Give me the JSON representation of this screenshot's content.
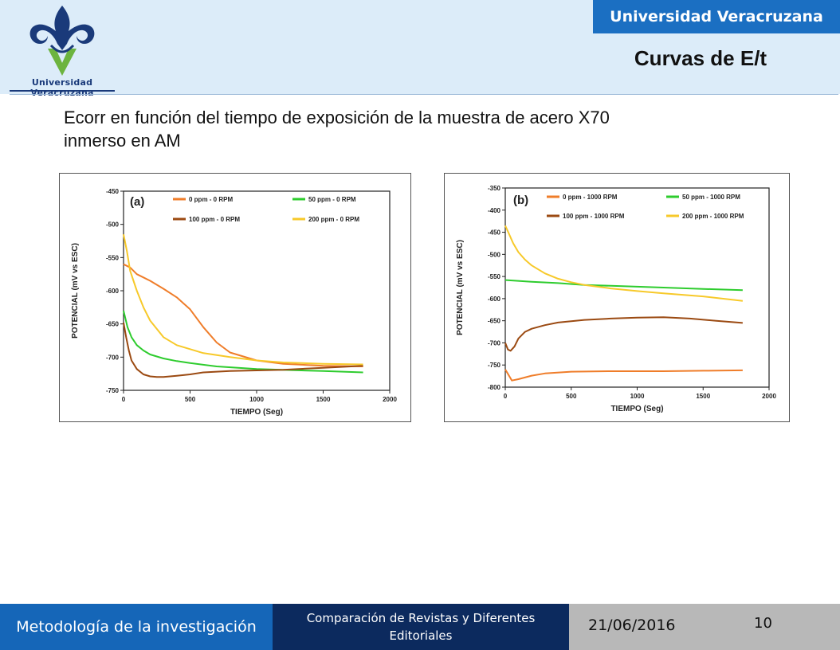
{
  "header": {
    "brand": "Universidad Veracruzana",
    "logo_text": "Universidad Veracruzana",
    "title": "Curvas de E/t"
  },
  "subtitle_line1": "Ecorr en función del tiempo de exposición de la muestra de acero X70",
  "subtitle_line2": "inmerso en AM",
  "footer": {
    "left": "Metodología de la investigación",
    "middle": "Comparación de Revistas y Diferentes Editoriales",
    "date": "21/06/2016",
    "page": "10"
  },
  "colors": {
    "header_band": "#dcecf9",
    "brand_blue": "#1b6fc2",
    "footer_dark": "#0c2a5e",
    "footer_gray": "#b8b8b8"
  },
  "chart_data": [
    {
      "type": "line",
      "panel_label": "(a)",
      "xlabel": "TIEMPO (Seg)",
      "ylabel": "POTENCIAL (mV vs ESC)",
      "xlim": [
        0,
        2000
      ],
      "ylim": [
        -750,
        -450
      ],
      "xticks": [
        0,
        500,
        1000,
        1500,
        2000
      ],
      "yticks": [
        -750,
        -700,
        -650,
        -600,
        -550,
        -500,
        -450
      ],
      "grid": false,
      "legend": "top, two columns",
      "series": [
        {
          "name": "0 ppm - 0 RPM",
          "color": "#ef7d2a",
          "x": [
            0,
            50,
            100,
            150,
            200,
            300,
            400,
            500,
            600,
            700,
            800,
            1000,
            1200,
            1500,
            1800
          ],
          "y": [
            -560,
            -565,
            -575,
            -580,
            -585,
            -597,
            -610,
            -628,
            -655,
            -678,
            -693,
            -705,
            -710,
            -713,
            -714
          ]
        },
        {
          "name": "50 ppm - 0 RPM",
          "color": "#2ecc2e",
          "x": [
            0,
            30,
            60,
            100,
            150,
            200,
            300,
            400,
            500,
            700,
            1000,
            1500,
            1800
          ],
          "y": [
            -630,
            -655,
            -670,
            -682,
            -690,
            -696,
            -702,
            -706,
            -709,
            -714,
            -718,
            -721,
            -723
          ]
        },
        {
          "name": "100 ppm - 0 RPM",
          "color": "#9b4a12",
          "x": [
            0,
            20,
            40,
            60,
            100,
            150,
            200,
            250,
            300,
            400,
            500,
            600,
            800,
            1000,
            1200,
            1500,
            1800
          ],
          "y": [
            -648,
            -670,
            -690,
            -705,
            -718,
            -726,
            -729,
            -730,
            -730,
            -728,
            -726,
            -723,
            -721,
            -720,
            -719,
            -716,
            -713
          ]
        },
        {
          "name": "200 ppm - 0 RPM",
          "color": "#f7c92a",
          "x": [
            0,
            25,
            50,
            100,
            150,
            200,
            300,
            400,
            500,
            600,
            800,
            1000,
            1200,
            1500,
            1800
          ],
          "y": [
            -515,
            -540,
            -570,
            -600,
            -625,
            -645,
            -670,
            -682,
            -688,
            -694,
            -700,
            -705,
            -708,
            -710,
            -711
          ]
        }
      ]
    },
    {
      "type": "line",
      "panel_label": "(b)",
      "xlabel": "TIEMPO (Seg)",
      "ylabel": "POTENCIAL (mV vs ESC)",
      "xlim": [
        0,
        2000
      ],
      "ylim": [
        -800,
        -350
      ],
      "xticks": [
        0,
        500,
        1000,
        1500,
        2000
      ],
      "yticks": [
        -800,
        -750,
        -700,
        -650,
        -600,
        -550,
        -500,
        -450,
        -400,
        -350
      ],
      "grid": false,
      "legend": "top, two columns",
      "series": [
        {
          "name": "0 ppm - 1000 RPM",
          "color": "#ef7d2a",
          "x": [
            0,
            20,
            50,
            100,
            200,
            300,
            500,
            800,
            1200,
            1500,
            1800
          ],
          "y": [
            -760,
            -770,
            -785,
            -782,
            -774,
            -769,
            -765,
            -764,
            -764,
            -763,
            -762
          ]
        },
        {
          "name": "50 ppm - 1000 RPM",
          "color": "#2ecc2e",
          "x": [
            0,
            200,
            400,
            600,
            800,
            1000,
            1200,
            1500,
            1800
          ],
          "y": [
            -558,
            -562,
            -565,
            -569,
            -571,
            -573,
            -575,
            -578,
            -581
          ]
        },
        {
          "name": "100 ppm - 1000 RPM",
          "color": "#9b4a12",
          "x": [
            0,
            20,
            40,
            70,
            100,
            150,
            200,
            300,
            400,
            600,
            800,
            1000,
            1200,
            1400,
            1600,
            1800
          ],
          "y": [
            -700,
            -715,
            -718,
            -708,
            -690,
            -675,
            -668,
            -660,
            -654,
            -648,
            -645,
            -643,
            -642,
            -645,
            -650,
            -655
          ]
        },
        {
          "name": "200 ppm - 1000 RPM",
          "color": "#f7c92a",
          "x": [
            0,
            30,
            60,
            100,
            150,
            200,
            300,
            400,
            500,
            600,
            800,
            1000,
            1200,
            1500,
            1800
          ],
          "y": [
            -435,
            -455,
            -475,
            -495,
            -512,
            -525,
            -543,
            -555,
            -563,
            -569,
            -577,
            -583,
            -588,
            -595,
            -605
          ]
        }
      ]
    }
  ]
}
